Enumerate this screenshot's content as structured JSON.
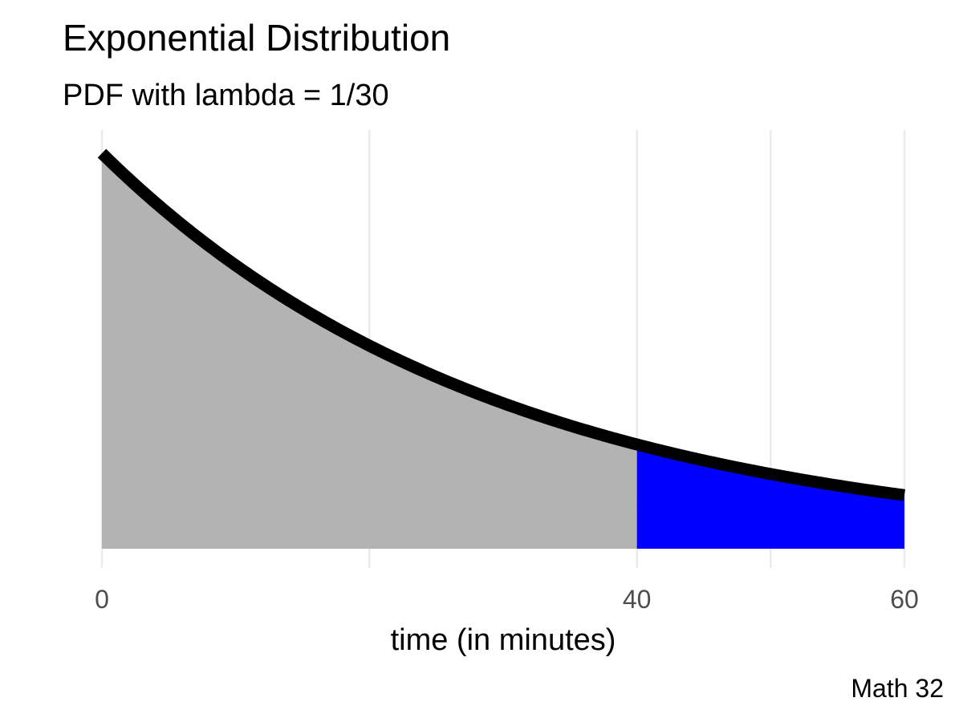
{
  "chart_data": {
    "type": "area",
    "title": "Exponential Distribution",
    "subtitle": "PDF with lambda = 1/30",
    "xlabel": "time (in minutes)",
    "ylabel": "",
    "caption": "Math 32",
    "lambda": 0.03333333,
    "xlim": [
      0,
      60
    ],
    "x_ticks": [
      0,
      40,
      60
    ],
    "x_gridlines": [
      0,
      20,
      40,
      50,
      60
    ],
    "y_visible": false,
    "grid": true,
    "legend": "none",
    "series": [
      {
        "x": [
          0,
          5,
          10,
          15,
          20,
          25,
          30,
          35,
          40,
          45,
          50,
          55,
          60
        ],
        "y": [
          0.03333,
          0.02821,
          0.02388,
          0.02022,
          0.01711,
          0.01449,
          0.01226,
          0.01038,
          0.00879,
          0.00744,
          0.0063,
          0.00533,
          0.00451
        ]
      }
    ],
    "shaded_regions": [
      {
        "from": 0,
        "to": 40,
        "color": "#b3b3b3"
      },
      {
        "from": 40,
        "to": 60,
        "color": "#0000ff"
      }
    ],
    "line_color": "#000000"
  }
}
